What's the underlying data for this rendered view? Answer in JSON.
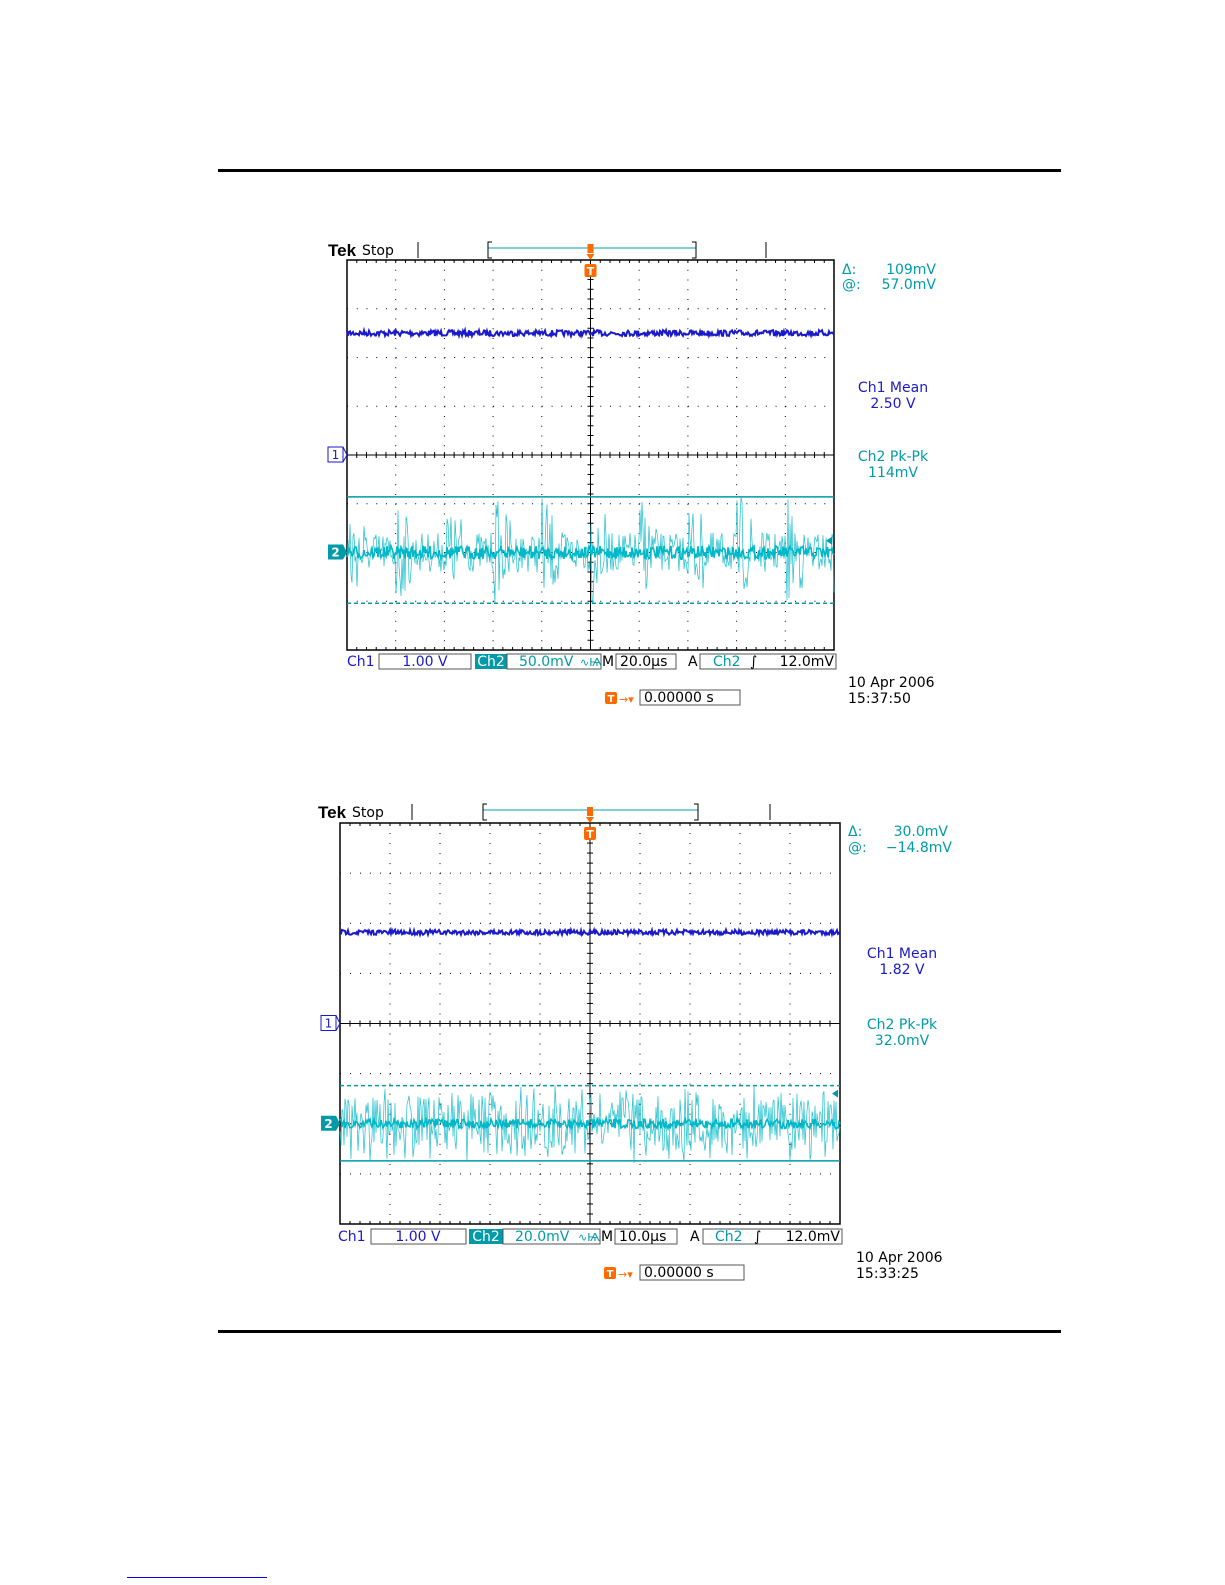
{
  "colors": {
    "ch1": "#1a1acc",
    "ch2": "#00b8c8",
    "ch2_text": "#009aa8",
    "trigger": "#ff6a00",
    "grid": "#000000"
  },
  "scopes": [
    {
      "brand": "Tek",
      "status": "Stop",
      "cursor": {
        "delta_label": "Δ:",
        "delta_value": "109mV",
        "at_label": "@:",
        "at_value": "57.0mV"
      },
      "measurements": [
        {
          "title": "Ch1 Mean",
          "value": "2.50 V",
          "channel": "ch1"
        },
        {
          "title": "Ch2 Pk-Pk",
          "value": "114mV",
          "channel": "ch2"
        }
      ],
      "bottom": {
        "ch1_label": "Ch1",
        "ch1_scale": "1.00 V",
        "ch2_label": "Ch2",
        "ch2_scale": "50.0mV",
        "m_label": "M",
        "timebase": "20.0µs",
        "trig_a": "A",
        "trig_ch": "Ch2",
        "trig_level": "12.0mV",
        "date": "10 Apr  2006",
        "time": "15:37:50",
        "position": "0.00000 s"
      },
      "markers": {
        "ch1": "1",
        "ch2": "2",
        "trigger": "T"
      }
    },
    {
      "brand": "Tek",
      "status": "Stop",
      "cursor": {
        "delta_label": "Δ:",
        "delta_value": "30.0mV",
        "at_label": "@:",
        "at_value": "−14.8mV"
      },
      "measurements": [
        {
          "title": "Ch1 Mean",
          "value": "1.82 V",
          "channel": "ch1"
        },
        {
          "title": "Ch2 Pk-Pk",
          "value": "32.0mV",
          "channel": "ch2"
        }
      ],
      "bottom": {
        "ch1_label": "Ch1",
        "ch1_scale": "1.00 V",
        "ch2_label": "Ch2",
        "ch2_scale": "20.0mV",
        "m_label": "M",
        "timebase": "10.0µs",
        "trig_a": "A",
        "trig_ch": "Ch2",
        "trig_level": "12.0mV",
        "date": "10 Apr  2006",
        "time": "15:33:25",
        "position": "0.00000 s"
      },
      "markers": {
        "ch1": "1",
        "ch2": "2",
        "trigger": "T"
      }
    }
  ],
  "chart_data": [
    {
      "type": "line",
      "title": "",
      "x_divisions": 10,
      "y_divisions": 8,
      "time_per_div_us": 20.0,
      "series": [
        {
          "name": "Ch1",
          "volts_per_div": 1.0,
          "mean_v": 2.5,
          "noise_pkpk_div": 0.12
        },
        {
          "name": "Ch2",
          "volts_per_div": 0.05,
          "pkpk_mv": 114,
          "cursor_delta_mv": 109,
          "cursor_at_mv": 57.0,
          "spike_bursts": 10
        }
      ],
      "grid": true
    },
    {
      "type": "line",
      "title": "",
      "x_divisions": 10,
      "y_divisions": 8,
      "time_per_div_us": 10.0,
      "series": [
        {
          "name": "Ch1",
          "volts_per_div": 1.0,
          "mean_v": 1.82,
          "noise_pkpk_div": 0.1
        },
        {
          "name": "Ch2",
          "volts_per_div": 0.02,
          "pkpk_mv": 32.0,
          "cursor_delta_mv": 30.0,
          "cursor_at_mv": -14.8,
          "spike_bursts": 0
        }
      ],
      "grid": true
    }
  ]
}
